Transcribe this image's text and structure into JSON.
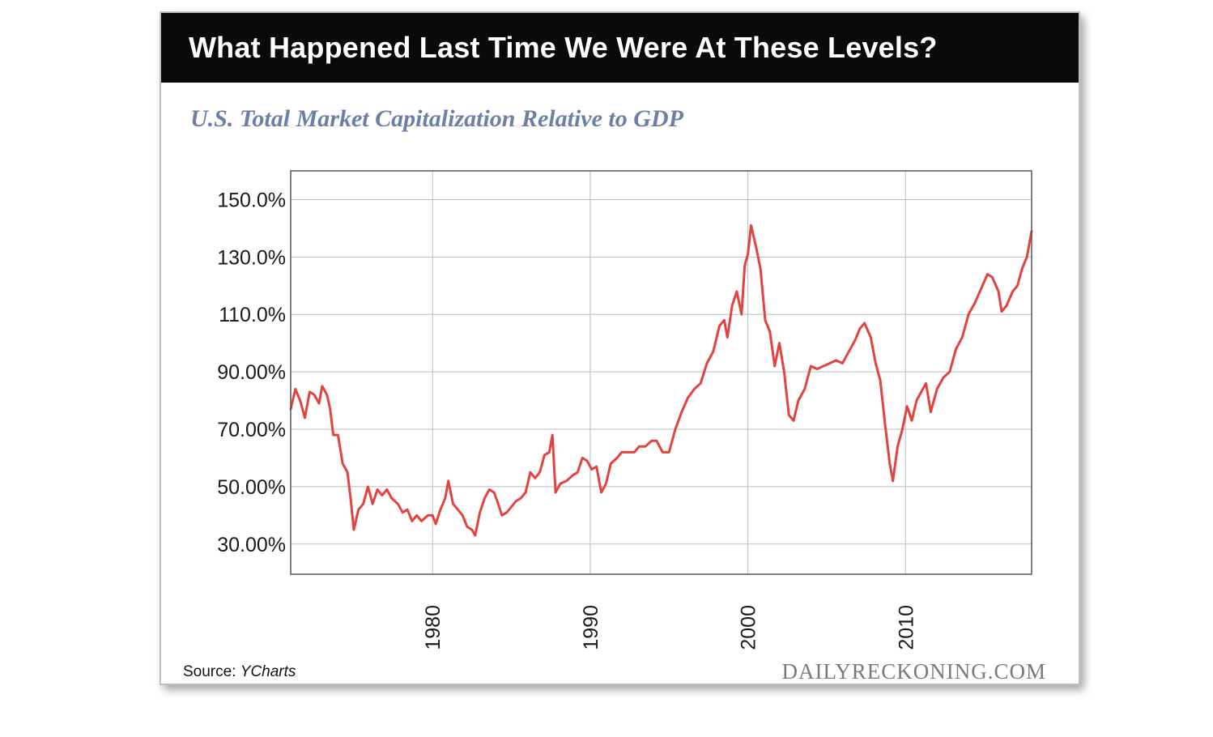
{
  "header": {
    "title": "What Happened Last Time We Were At These Levels?"
  },
  "footer": {
    "source_label": "Source:",
    "source_name": "YCharts",
    "brand": "DAILYRECKONING.COM"
  },
  "colors": {
    "header_bg": "#0a0a0a",
    "line": "#e2433f",
    "subtitle": "#6c7fa6",
    "grid": "#bdbdbd"
  },
  "chart_data": {
    "type": "line",
    "title": "",
    "subtitle": "U.S. Total Market Capitalization Relative to GDP",
    "xlabel": "",
    "ylabel": "",
    "xlim": [
      1971.0,
      2018.0
    ],
    "ylim": [
      19.5,
      160.0
    ],
    "grid": true,
    "legend": "none",
    "y_ticks": [
      {
        "value": 150,
        "label": "150.0%"
      },
      {
        "value": 130,
        "label": "130.0%"
      },
      {
        "value": 110,
        "label": "110.0%"
      },
      {
        "value": 90,
        "label": "90.00%"
      },
      {
        "value": 70,
        "label": "70.00%"
      },
      {
        "value": 50,
        "label": "50.00%"
      },
      {
        "value": 30,
        "label": "30.00%"
      }
    ],
    "x_ticks": [
      {
        "value": 1980,
        "label": "1980"
      },
      {
        "value": 1990,
        "label": "1990"
      },
      {
        "value": 2000,
        "label": "2000"
      },
      {
        "value": 2010,
        "label": "2010"
      }
    ],
    "series": [
      {
        "values": [
          [
            1971.0,
            77
          ],
          [
            1971.3,
            84
          ],
          [
            1971.6,
            80
          ],
          [
            1971.9,
            74
          ],
          [
            1972.2,
            83
          ],
          [
            1972.5,
            82
          ],
          [
            1972.8,
            79
          ],
          [
            1973.0,
            85
          ],
          [
            1973.3,
            82
          ],
          [
            1973.5,
            77
          ],
          [
            1973.7,
            68
          ],
          [
            1974.0,
            68
          ],
          [
            1974.3,
            58
          ],
          [
            1974.6,
            55
          ],
          [
            1974.8,
            46
          ],
          [
            1975.0,
            35
          ],
          [
            1975.3,
            42
          ],
          [
            1975.6,
            44
          ],
          [
            1975.9,
            50
          ],
          [
            1976.2,
            44
          ],
          [
            1976.5,
            49
          ],
          [
            1976.8,
            47
          ],
          [
            1977.1,
            49
          ],
          [
            1977.4,
            46
          ],
          [
            1977.8,
            44
          ],
          [
            1978.1,
            41
          ],
          [
            1978.4,
            42
          ],
          [
            1978.7,
            38
          ],
          [
            1979.0,
            40
          ],
          [
            1979.3,
            38
          ],
          [
            1979.7,
            40
          ],
          [
            1980.0,
            40
          ],
          [
            1980.2,
            37
          ],
          [
            1980.5,
            42
          ],
          [
            1980.8,
            46
          ],
          [
            1981.0,
            52
          ],
          [
            1981.3,
            44
          ],
          [
            1981.6,
            42
          ],
          [
            1981.9,
            40
          ],
          [
            1982.2,
            36
          ],
          [
            1982.5,
            35
          ],
          [
            1982.7,
            33
          ],
          [
            1983.0,
            41
          ],
          [
            1983.3,
            46
          ],
          [
            1983.6,
            49
          ],
          [
            1983.9,
            48
          ],
          [
            1984.1,
            45
          ],
          [
            1984.4,
            40
          ],
          [
            1984.7,
            41
          ],
          [
            1985.0,
            43
          ],
          [
            1985.3,
            45
          ],
          [
            1985.6,
            46
          ],
          [
            1985.9,
            48
          ],
          [
            1986.2,
            55
          ],
          [
            1986.5,
            53
          ],
          [
            1986.8,
            55
          ],
          [
            1987.1,
            61
          ],
          [
            1987.4,
            62
          ],
          [
            1987.6,
            68
          ],
          [
            1987.8,
            48
          ],
          [
            1988.1,
            51
          ],
          [
            1988.5,
            52
          ],
          [
            1988.9,
            54
          ],
          [
            1989.2,
            55
          ],
          [
            1989.5,
            60
          ],
          [
            1989.8,
            59
          ],
          [
            1990.1,
            56
          ],
          [
            1990.4,
            57
          ],
          [
            1990.7,
            48
          ],
          [
            1991.0,
            51
          ],
          [
            1991.3,
            58
          ],
          [
            1991.7,
            60
          ],
          [
            1992.0,
            62
          ],
          [
            1992.4,
            62
          ],
          [
            1992.8,
            62
          ],
          [
            1993.1,
            64
          ],
          [
            1993.5,
            64
          ],
          [
            1993.9,
            66
          ],
          [
            1994.2,
            66
          ],
          [
            1994.6,
            62
          ],
          [
            1995.0,
            62
          ],
          [
            1995.4,
            70
          ],
          [
            1995.8,
            76
          ],
          [
            1996.2,
            81
          ],
          [
            1996.6,
            84
          ],
          [
            1997.0,
            86
          ],
          [
            1997.4,
            93
          ],
          [
            1997.8,
            97
          ],
          [
            1998.2,
            106
          ],
          [
            1998.5,
            108
          ],
          [
            1998.7,
            102
          ],
          [
            1999.0,
            113
          ],
          [
            1999.3,
            118
          ],
          [
            1999.6,
            110
          ],
          [
            1999.8,
            127
          ],
          [
            2000.0,
            131
          ],
          [
            2000.2,
            141
          ],
          [
            2000.5,
            134
          ],
          [
            2000.8,
            126
          ],
          [
            2001.1,
            108
          ],
          [
            2001.4,
            104
          ],
          [
            2001.7,
            92
          ],
          [
            2002.0,
            100
          ],
          [
            2002.3,
            90
          ],
          [
            2002.6,
            75
          ],
          [
            2002.9,
            73
          ],
          [
            2003.2,
            80
          ],
          [
            2003.6,
            84
          ],
          [
            2004.0,
            92
          ],
          [
            2004.4,
            91
          ],
          [
            2004.8,
            92
          ],
          [
            2005.2,
            93
          ],
          [
            2005.6,
            94
          ],
          [
            2006.0,
            93
          ],
          [
            2006.4,
            97
          ],
          [
            2006.8,
            101
          ],
          [
            2007.1,
            105
          ],
          [
            2007.4,
            107
          ],
          [
            2007.8,
            102
          ],
          [
            2008.1,
            93
          ],
          [
            2008.4,
            87
          ],
          [
            2008.7,
            72
          ],
          [
            2009.0,
            58
          ],
          [
            2009.2,
            52
          ],
          [
            2009.5,
            64
          ],
          [
            2009.8,
            70
          ],
          [
            2010.1,
            78
          ],
          [
            2010.4,
            73
          ],
          [
            2010.7,
            80
          ],
          [
            2011.0,
            83
          ],
          [
            2011.3,
            86
          ],
          [
            2011.6,
            76
          ],
          [
            2012.0,
            84
          ],
          [
            2012.4,
            88
          ],
          [
            2012.8,
            90
          ],
          [
            2013.2,
            98
          ],
          [
            2013.6,
            102
          ],
          [
            2014.0,
            110
          ],
          [
            2014.4,
            114
          ],
          [
            2014.8,
            119
          ],
          [
            2015.2,
            124
          ],
          [
            2015.5,
            123
          ],
          [
            2015.9,
            118
          ],
          [
            2016.1,
            111
          ],
          [
            2016.4,
            113
          ],
          [
            2016.8,
            118
          ],
          [
            2017.1,
            120
          ],
          [
            2017.4,
            126
          ],
          [
            2017.7,
            130
          ],
          [
            2018.0,
            139
          ]
        ]
      }
    ]
  }
}
